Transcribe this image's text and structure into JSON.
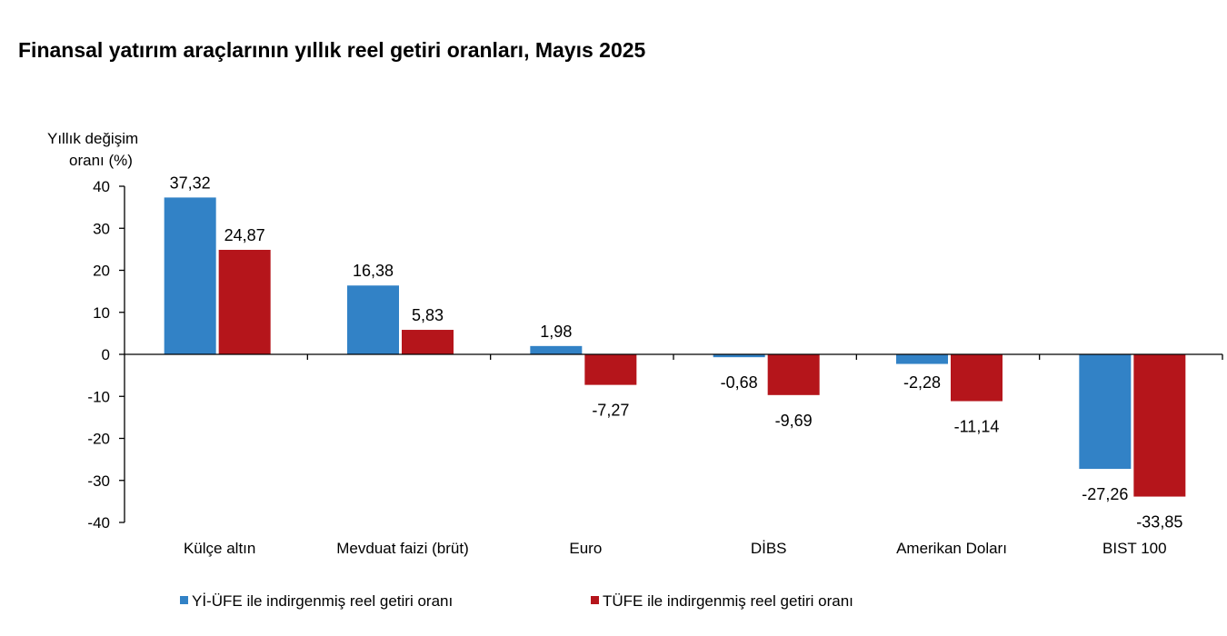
{
  "chart_data": {
    "type": "bar",
    "title": "Finansal yatırım araçlarının yıllık reel getiri oranları, Mayıs 2025",
    "ylabel_lines": [
      "Yıllık değişim",
      "oranı (%)"
    ],
    "xlabel": "",
    "categories": [
      "Külçe altın",
      "Mevduat faizi (brüt)",
      "Euro",
      "DİBS",
      "Amerikan Doları",
      "BIST 100"
    ],
    "series": [
      {
        "name": "Yİ-ÜFE ile indirgenmiş reel getiri oranı",
        "color": "#3282c6",
        "values": [
          37.32,
          16.38,
          1.98,
          -0.68,
          -2.28,
          -27.26
        ],
        "labels": [
          "37,32",
          "16,38",
          "1,98",
          "-0,68",
          "-2,28",
          "-27,26"
        ]
      },
      {
        "name": "TÜFE ile indirgenmiş reel getiri oranı",
        "color": "#b5151b",
        "values": [
          24.87,
          5.83,
          -7.27,
          -9.69,
          -11.14,
          -33.85
        ],
        "labels": [
          "24,87",
          "5,83",
          "-7,27",
          "-9,69",
          "-11,14",
          "-33,85"
        ]
      }
    ],
    "ylim": [
      -40,
      40
    ],
    "yticks": [
      40,
      30,
      20,
      10,
      0,
      -10,
      -20,
      -30,
      -40
    ],
    "ytick_labels": [
      "40",
      "30",
      "20",
      "10",
      "0",
      "-10",
      "-20",
      "-30",
      "-40"
    ],
    "grid": false,
    "legend_position": "bottom"
  }
}
